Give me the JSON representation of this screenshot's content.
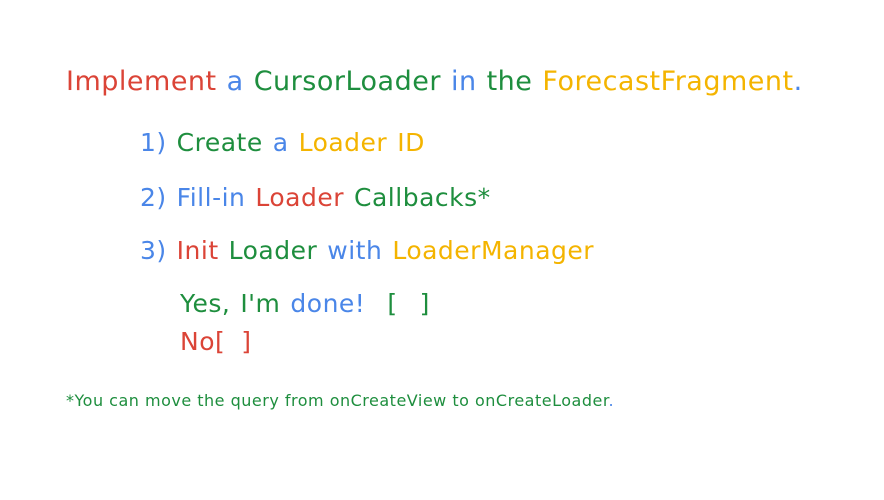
{
  "colors": {
    "red": "#db4437",
    "blue": "#4a86e8",
    "green": "#1e8e3e",
    "yellow": "#f4b400"
  },
  "title": {
    "w1": "Implement",
    "w2": "a",
    "w3": "CursorLoader",
    "w4": "in",
    "w5": "the",
    "w6": "ForecastFragment",
    "end": "."
  },
  "step1": {
    "num": "1)",
    "w1": "Create",
    "w2": "a",
    "w3": "Loader",
    "w4": "ID"
  },
  "step2": {
    "num": "2)",
    "w1": "Fill-in",
    "w2": "Loader",
    "w3": "Callbacks*"
  },
  "step3": {
    "num": "3)",
    "w1": "Init",
    "w2": "Loader",
    "w3": "with",
    "w4": "LoaderManager"
  },
  "answers": {
    "yes_w1": "Yes",
    "yes_comma": ",",
    "yes_w2": "I'm",
    "yes_w3": "done!",
    "yes_open": "[",
    "yes_close": "]",
    "no_label": "No",
    "no_open": "[",
    "no_close": "]"
  },
  "footnote": {
    "text": "*You can move the query from onCreateView to onCreateLoader",
    "end": "."
  }
}
